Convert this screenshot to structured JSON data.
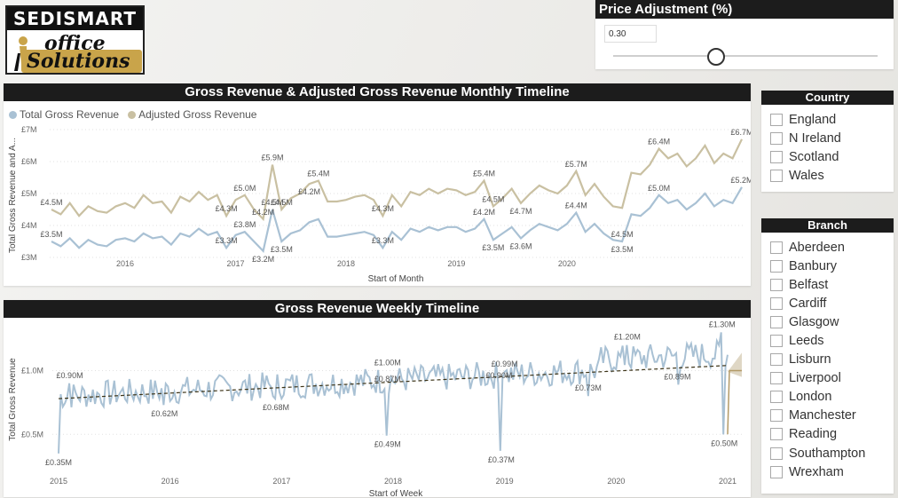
{
  "logo": {
    "top_text": "SEDISMART",
    "office": "office",
    "solutions": "Solutions"
  },
  "price_adjustment": {
    "title": "Price Adjustment (%)",
    "value": "0.30",
    "slider_fraction": 0.39
  },
  "colors": {
    "gross": "#a9c1d4",
    "adjusted": "#c9c0a2",
    "trend": "#3d3418",
    "forecast": "#b39a67",
    "header": "#1c1c1c"
  },
  "country": {
    "title": "Country",
    "items": [
      "England",
      "N Ireland",
      "Scotland",
      "Wales"
    ]
  },
  "branch": {
    "title": "Branch",
    "items": [
      "Aberdeen",
      "Banbury",
      "Belfast",
      "Cardiff",
      "Glasgow",
      "Leeds",
      "Lisburn",
      "Liverpool",
      "London",
      "Manchester",
      "Reading",
      "Southampton",
      "Wrexham"
    ]
  },
  "chart_data": [
    {
      "type": "line",
      "title": "Gross Revenue & Adjusted Gross Revenue Monthly Timeline",
      "xlabel": "Start of Month",
      "ylabel": "Total Gross Revenue and A...",
      "x_ticks": [
        "2016",
        "2017",
        "2018",
        "2019",
        "2020"
      ],
      "y_ticks": [
        "£3M",
        "£4M",
        "£5M",
        "£6M",
        "£7M"
      ],
      "ylim": [
        3.0,
        7.0
      ],
      "grid": "horizontal dotted",
      "legend": "top-left",
      "series": [
        {
          "name": "Total Gross Revenue",
          "values": [
            3.5,
            3.35,
            3.6,
            3.3,
            3.55,
            3.4,
            3.35,
            3.55,
            3.6,
            3.5,
            3.75,
            3.6,
            3.65,
            3.4,
            3.75,
            3.65,
            3.9,
            3.7,
            3.8,
            3.3,
            3.7,
            3.8,
            3.5,
            3.2,
            4.5,
            3.5,
            3.75,
            3.85,
            4.1,
            4.2,
            3.65,
            3.65,
            3.7,
            3.75,
            3.8,
            3.7,
            3.3,
            3.8,
            3.55,
            3.9,
            3.8,
            3.95,
            3.85,
            3.95,
            3.95,
            3.8,
            3.9,
            4.2,
            3.55,
            3.75,
            3.95,
            3.6,
            3.85,
            4.05,
            3.95,
            3.85,
            4.05,
            4.4,
            3.8,
            4.05,
            3.75,
            3.55,
            3.5,
            4.35,
            4.3,
            4.55,
            4.95,
            4.7,
            4.8,
            4.5,
            4.7,
            5.0,
            4.6,
            4.8,
            4.7,
            5.2
          ]
        },
        {
          "name": "Adjusted Gross Revenue",
          "values": [
            4.5,
            4.35,
            4.7,
            4.3,
            4.6,
            4.45,
            4.4,
            4.6,
            4.7,
            4.55,
            4.95,
            4.7,
            4.75,
            4.4,
            4.9,
            4.75,
            5.05,
            4.8,
            4.95,
            4.3,
            4.8,
            4.95,
            4.5,
            4.2,
            5.9,
            4.5,
            4.85,
            5.0,
            5.3,
            5.4,
            4.75,
            4.75,
            4.8,
            4.9,
            4.95,
            4.8,
            4.3,
            4.95,
            4.6,
            5.05,
            4.95,
            5.15,
            5.0,
            5.15,
            5.1,
            4.95,
            5.05,
            5.4,
            4.6,
            4.85,
            5.15,
            4.7,
            5.0,
            5.25,
            5.1,
            5.0,
            5.25,
            5.7,
            4.95,
            5.3,
            4.9,
            4.6,
            4.55,
            5.65,
            5.6,
            5.9,
            6.4,
            6.1,
            6.25,
            5.85,
            6.1,
            6.5,
            5.95,
            6.25,
            6.1,
            6.7
          ]
        }
      ],
      "data_labels": [
        {
          "text": "£4.5M",
          "i": 0,
          "series": 1,
          "pos": "above"
        },
        {
          "text": "£3.5M",
          "i": 0,
          "series": 0,
          "pos": "above"
        },
        {
          "text": "£4.3M",
          "i": 19,
          "series": 1,
          "pos": "above"
        },
        {
          "text": "£3.3M",
          "i": 19,
          "series": 0,
          "pos": "above"
        },
        {
          "text": "£5.0M",
          "i": 21,
          "series": 1,
          "pos": "above"
        },
        {
          "text": "£3.8M",
          "i": 21,
          "series": 0,
          "pos": "above"
        },
        {
          "text": "£4.2M",
          "i": 23,
          "series": 1,
          "pos": "above"
        },
        {
          "text": "£3.2M",
          "i": 23,
          "series": 0,
          "pos": "below"
        },
        {
          "text": "£5.9M",
          "i": 24,
          "series": 1,
          "pos": "above"
        },
        {
          "text": "£4.5M",
          "i": 24,
          "series": 0,
          "pos": "above"
        },
        {
          "text": "£4.5M",
          "i": 25,
          "series": 1,
          "pos": "above"
        },
        {
          "text": "£3.5M",
          "i": 25,
          "series": 0,
          "pos": "below"
        },
        {
          "text": "£4.2M",
          "i": 28,
          "series": 1,
          "pos": "below"
        },
        {
          "text": "£5.4M",
          "i": 29,
          "series": 1,
          "pos": "above"
        },
        {
          "text": "£4.3M",
          "i": 36,
          "series": 1,
          "pos": "above"
        },
        {
          "text": "£3.3M",
          "i": 36,
          "series": 0,
          "pos": "above"
        },
        {
          "text": "£5.4M",
          "i": 47,
          "series": 1,
          "pos": "above"
        },
        {
          "text": "£4.2M",
          "i": 47,
          "series": 0,
          "pos": "above"
        },
        {
          "text": "£4.5M",
          "i": 48,
          "series": 1,
          "pos": "above"
        },
        {
          "text": "£3.5M",
          "i": 48,
          "series": 0,
          "pos": "below"
        },
        {
          "text": "£4.7M",
          "i": 51,
          "series": 1,
          "pos": "below"
        },
        {
          "text": "£3.6M",
          "i": 51,
          "series": 0,
          "pos": "below"
        },
        {
          "text": "£5.7M",
          "i": 57,
          "series": 1,
          "pos": "above"
        },
        {
          "text": "£4.4M",
          "i": 57,
          "series": 0,
          "pos": "above"
        },
        {
          "text": "£4.5M",
          "i": 62,
          "series": 0,
          "pos": "above"
        },
        {
          "text": "£3.5M",
          "i": 62,
          "series": 0,
          "pos": "below"
        },
        {
          "text": "£6.4M",
          "i": 66,
          "series": 1,
          "pos": "above"
        },
        {
          "text": "£5.0M",
          "i": 66,
          "series": 0,
          "pos": "above"
        },
        {
          "text": "£6.7M",
          "i": 75,
          "series": 1,
          "pos": "above"
        },
        {
          "text": "£5.2M",
          "i": 75,
          "series": 0,
          "pos": "above"
        }
      ]
    },
    {
      "type": "line",
      "title": "Gross Revenue Weekly Timeline",
      "xlabel": "Start of Week",
      "ylabel": "Total Gross Revenue",
      "x_ticks": [
        "2015",
        "2016",
        "2017",
        "2018",
        "2019",
        "2020",
        "2021"
      ],
      "y_ticks": [
        "£0.5M",
        "£1.0M"
      ],
      "ylim": [
        0.3,
        1.4
      ],
      "trend_line": {
        "start": 0.78,
        "end": 1.04,
        "style": "dashed"
      },
      "series": [
        {
          "name": "Total Gross Revenue",
          "x_range": [
            2015.0,
            2021.0
          ],
          "note": "weekly values, ~313 points"
        }
      ],
      "key_points": [
        {
          "text": "£0.35M",
          "x": 2015.0,
          "y": 0.35
        },
        {
          "text": "£0.90M",
          "x": 2015.1,
          "y": 0.9
        },
        {
          "text": "£0.62M",
          "x": 2015.95,
          "y": 0.73
        },
        {
          "text": "£0.68M",
          "x": 2016.95,
          "y": 0.78
        },
        {
          "text": "£1.00M",
          "x": 2017.95,
          "y": 1.0
        },
        {
          "text": "£0.87M",
          "x": 2017.95,
          "y": 0.87
        },
        {
          "text": "£0.49M",
          "x": 2017.95,
          "y": 0.49
        },
        {
          "text": "£0.99M",
          "x": 2019.0,
          "y": 0.99
        },
        {
          "text": "£0.90M",
          "x": 2018.95,
          "y": 0.9
        },
        {
          "text": "£0.37M",
          "x": 2018.97,
          "y": 0.37
        },
        {
          "text": "£0.73M",
          "x": 2019.75,
          "y": 0.8
        },
        {
          "text": "£1.20M",
          "x": 2020.1,
          "y": 1.2
        },
        {
          "text": "£0.89M",
          "x": 2020.55,
          "y": 0.89
        },
        {
          "text": "£1.30M",
          "x": 2020.95,
          "y": 1.3
        },
        {
          "text": "£0.50M",
          "x": 2020.97,
          "y": 0.5
        }
      ]
    }
  ]
}
